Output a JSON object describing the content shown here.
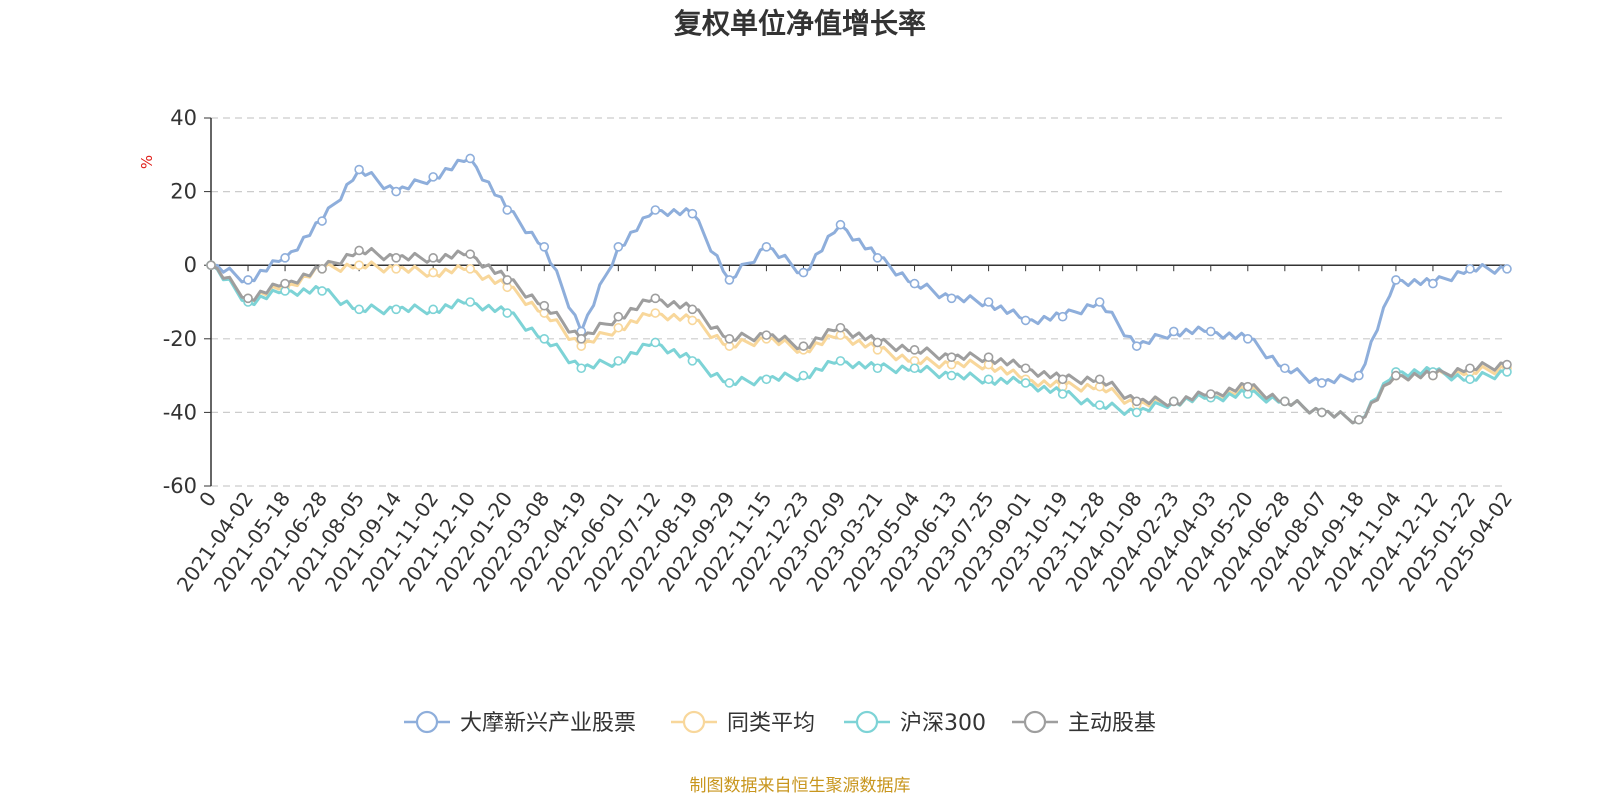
{
  "chart_data": {
    "type": "line",
    "title": "复权单位净值增长率",
    "ylabel": "%",
    "ylim": [
      -60,
      40
    ],
    "yticks": [
      40,
      20,
      0,
      -20,
      -40,
      -60
    ],
    "xticks": [
      "0",
      "2021-04-02",
      "2021-05-18",
      "2021-06-28",
      "2021-08-05",
      "2021-09-14",
      "2021-11-02",
      "2021-12-10",
      "2022-01-20",
      "2022-03-08",
      "2022-04-19",
      "2022-06-01",
      "2022-07-12",
      "2022-08-19",
      "2022-09-29",
      "2022-11-15",
      "2022-12-23",
      "2023-02-09",
      "2023-03-21",
      "2023-05-04",
      "2023-06-13",
      "2023-07-25",
      "2023-09-01",
      "2023-10-19",
      "2023-11-28",
      "2024-01-08",
      "2024-02-23",
      "2024-04-03",
      "2024-05-20",
      "2024-06-28",
      "2024-08-07",
      "2024-09-18",
      "2024-11-04",
      "2024-12-12",
      "2025-01-22",
      "2025-04-02"
    ],
    "grid": true,
    "legend_position": "bottom",
    "x": [
      0,
      1,
      2,
      3,
      4,
      5,
      6,
      7,
      8,
      9,
      10,
      11,
      12,
      13,
      14,
      15,
      16,
      17,
      18,
      19,
      20,
      21,
      22,
      23,
      24,
      25,
      26,
      27,
      28,
      29,
      30,
      31,
      32,
      33,
      34,
      35
    ],
    "series": [
      {
        "name": "大摩新兴产业股票",
        "color": "#8eaedb",
        "values": [
          0,
          -4,
          2,
          12,
          26,
          20,
          24,
          29,
          15,
          5,
          -18,
          5,
          15,
          14,
          -4,
          5,
          -2,
          11,
          2,
          -5,
          -9,
          -10,
          -15,
          -14,
          -10,
          -22,
          -18,
          -18,
          -20,
          -28,
          -32,
          -30,
          -4,
          -5,
          -1,
          -1
        ]
      },
      {
        "name": "同类平均",
        "color": "#f8d79b",
        "values": [
          0,
          -9,
          -6,
          -1,
          0,
          -1,
          -2,
          -1,
          -6,
          -13,
          -22,
          -17,
          -13,
          -15,
          -22,
          -20,
          -23,
          -19,
          -23,
          -26,
          -27,
          -27,
          -31,
          -33,
          -33,
          -38,
          -37,
          -36,
          -34,
          -37,
          -40,
          -42,
          -30,
          -30,
          -29,
          -28
        ]
      },
      {
        "name": "沪深300",
        "color": "#7dd3d6",
        "values": [
          0,
          -10,
          -7,
          -7,
          -12,
          -12,
          -12,
          -10,
          -13,
          -20,
          -28,
          -26,
          -21,
          -26,
          -32,
          -31,
          -30,
          -26,
          -28,
          -28,
          -30,
          -31,
          -32,
          -35,
          -38,
          -40,
          -37,
          -36,
          -35,
          -37,
          -40,
          -42,
          -29,
          -29,
          -31,
          -29
        ]
      },
      {
        "name": "主动股基",
        "color": "#9e9e9e",
        "values": [
          0,
          -9,
          -5,
          -1,
          4,
          2,
          2,
          3,
          -4,
          -11,
          -20,
          -14,
          -9,
          -12,
          -20,
          -19,
          -22,
          -17,
          -21,
          -23,
          -25,
          -25,
          -28,
          -31,
          -31,
          -37,
          -37,
          -35,
          -33,
          -37,
          -40,
          -42,
          -30,
          -30,
          -28,
          -27
        ]
      }
    ]
  },
  "source_text": "制图数据来自恒生聚源数据库"
}
